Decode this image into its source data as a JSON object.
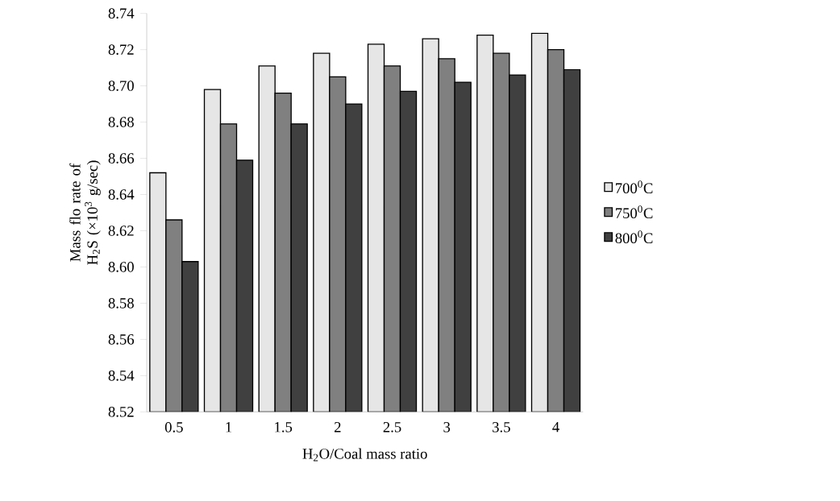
{
  "chart_data": {
    "type": "bar",
    "xlabel": "H$_{2}$O/Coal mass ratio",
    "ylabel": "Mass flo rate of H$_{2}$S (×10$^{3}$ g/sec)",
    "categories": [
      "0.5",
      "1",
      "1.5",
      "2",
      "2.5",
      "3",
      "3.5",
      "4"
    ],
    "series": [
      {
        "name": "700$^{0}$C",
        "color": "#e6e6e6",
        "values": [
          8.652,
          8.698,
          8.711,
          8.718,
          8.723,
          8.726,
          8.728,
          8.729
        ]
      },
      {
        "name": "750$^{0}$C",
        "color": "#808080",
        "values": [
          8.626,
          8.679,
          8.696,
          8.705,
          8.711,
          8.715,
          8.718,
          8.72
        ]
      },
      {
        "name": "800$^{0}$C",
        "color": "#404040",
        "values": [
          8.603,
          8.659,
          8.679,
          8.69,
          8.697,
          8.702,
          8.706,
          8.709
        ]
      }
    ],
    "ylim": [
      8.52,
      8.74
    ],
    "yticks": [
      {
        "value": 8.52,
        "label": "8.52"
      },
      {
        "value": 8.54,
        "label": "8.54"
      },
      {
        "value": 8.56,
        "label": "8.56"
      },
      {
        "value": 8.58,
        "label": "8.58"
      },
      {
        "value": 8.6,
        "label": "8.60"
      },
      {
        "value": 8.62,
        "label": "8.62"
      },
      {
        "value": 8.64,
        "label": "8.64"
      },
      {
        "value": 8.66,
        "label": "8.66"
      },
      {
        "value": 8.68,
        "label": "8.68"
      },
      {
        "value": 8.7,
        "label": "8.70"
      },
      {
        "value": 8.72,
        "label": "8.72"
      },
      {
        "value": 8.74,
        "label": "8.74"
      }
    ],
    "legend": "right",
    "grid": false
  }
}
